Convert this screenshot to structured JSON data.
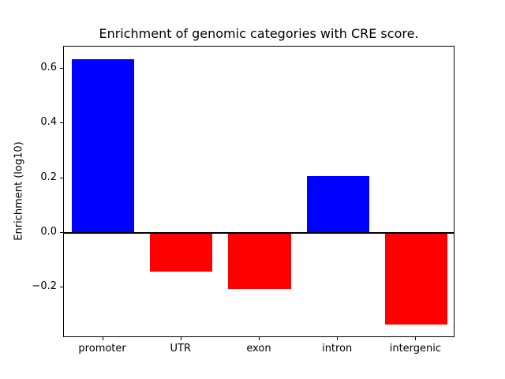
{
  "chart_data": {
    "type": "bar",
    "title": "Enrichment of genomic categories with CRE score.",
    "ylabel": "Enrichment (log10)",
    "xlabel": "",
    "categories": [
      "promoter",
      "UTR",
      "exon",
      "intron",
      "intergenic"
    ],
    "values": [
      0.633,
      -0.142,
      -0.203,
      0.208,
      -0.335
    ],
    "bar_colors": [
      "#0000ff",
      "#ff0000",
      "#ff0000",
      "#0000ff",
      "#ff0000"
    ],
    "positive_color": "#0000ff",
    "negative_color": "#ff0000",
    "ylim": [
      -0.383,
      0.68
    ],
    "ytick_values": [
      -0.2,
      0.0,
      0.2,
      0.4,
      0.6
    ],
    "ytick_labels": [
      "−0.2",
      "0.0",
      "0.2",
      "0.4",
      "0.6"
    ],
    "zero_line": true,
    "grid": false,
    "legend": false,
    "bar_width_fraction": 0.8
  }
}
